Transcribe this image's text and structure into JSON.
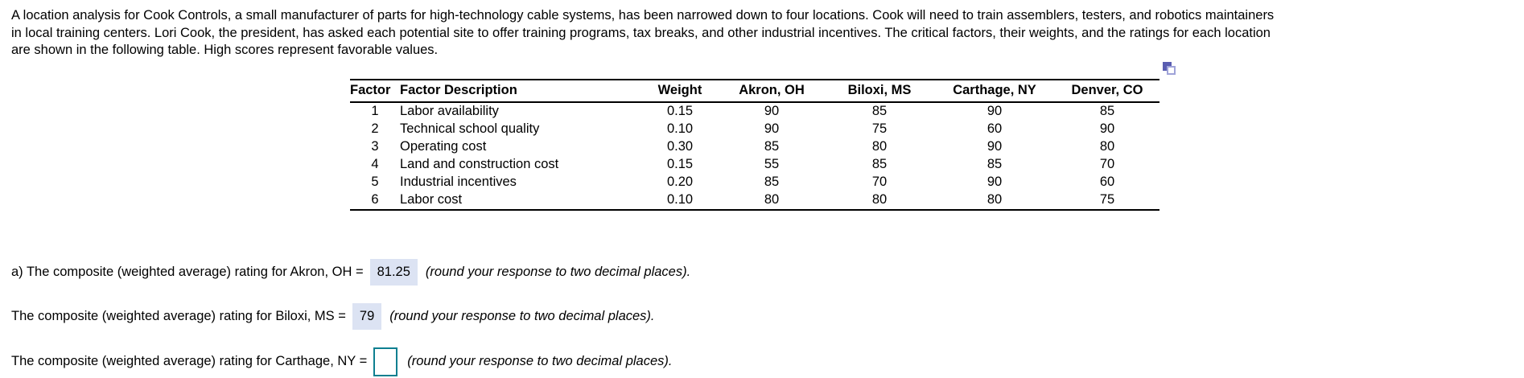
{
  "colors": {
    "answer_highlight_bg": "#dce3f3",
    "input_box_border": "#0e7f90",
    "copy_icon_primary": "#5a5db1",
    "copy_icon_secondary": "#9fa3d9",
    "text": "#000000",
    "table_border": "#000000"
  },
  "icons": {
    "copy_table": "copy-icon"
  },
  "problem_statement": {
    "lines": [
      "A location analysis for Cook Controls, a small manufacturer of parts for high-technology cable systems, has been narrowed down to four locations. Cook will need to train assemblers, testers, and robotics maintainers",
      "in local training centers. Lori Cook, the president, has asked each potential site to offer training programs, tax breaks, and other industrial incentives. The critical factors, their weights, and the ratings for each location",
      "are shown in the following table. High scores represent favorable values."
    ]
  },
  "table": {
    "headers": {
      "factor": "Factor",
      "description": "Factor Description",
      "weight": "Weight",
      "akron": "Akron, OH",
      "biloxi": "Biloxi, MS",
      "carthage": "Carthage, NY",
      "denver": "Denver, CO"
    },
    "rows": [
      {
        "factor": "1",
        "description": "Labor availability",
        "weight": "0.15",
        "akron": "90",
        "biloxi": "85",
        "carthage": "90",
        "denver": "85"
      },
      {
        "factor": "2",
        "description": "Technical school quality",
        "weight": "0.10",
        "akron": "90",
        "biloxi": "75",
        "carthage": "60",
        "denver": "90"
      },
      {
        "factor": "3",
        "description": "Operating cost",
        "weight": "0.30",
        "akron": "85",
        "biloxi": "80",
        "carthage": "90",
        "denver": "80"
      },
      {
        "factor": "4",
        "description": "Land and construction cost",
        "weight": "0.15",
        "akron": "55",
        "biloxi": "85",
        "carthage": "85",
        "denver": "70"
      },
      {
        "factor": "5",
        "description": "Industrial incentives",
        "weight": "0.20",
        "akron": "85",
        "biloxi": "70",
        "carthage": "90",
        "denver": "60"
      },
      {
        "factor": "6",
        "description": "Labor cost",
        "weight": "0.10",
        "akron": "80",
        "biloxi": "80",
        "carthage": "80",
        "denver": "75"
      }
    ]
  },
  "questions": [
    {
      "prefix": "a) The composite (weighted average) rating for Akron, OH =",
      "answer": "81.25",
      "suffix": "(round your response to two decimal places)."
    },
    {
      "prefix": "The composite (weighted average) rating for Biloxi, MS =",
      "answer": "79",
      "suffix": "(round your response to two decimal places)."
    },
    {
      "prefix": "The composite (weighted average) rating for Carthage, NY =",
      "answer": "",
      "suffix": "(round your response to two decimal places)."
    }
  ]
}
